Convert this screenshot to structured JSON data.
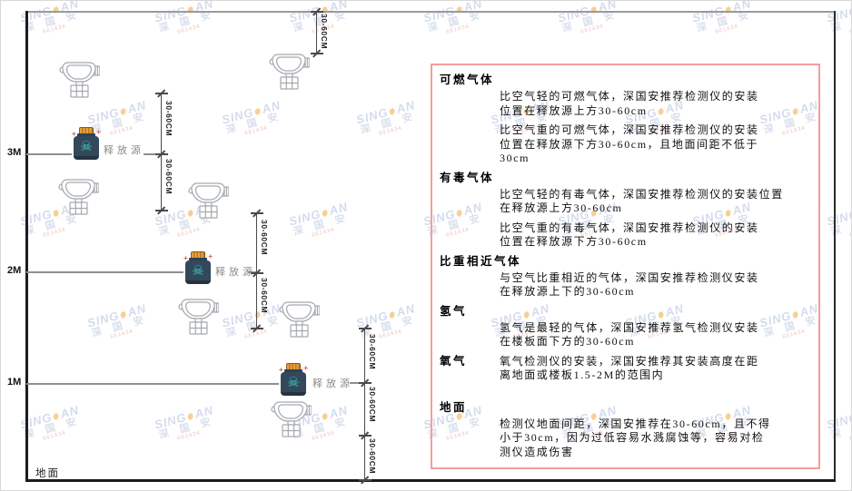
{
  "diagram": {
    "ground_label": "地面",
    "height_labels": [
      "3M",
      "2M",
      "1M"
    ],
    "release_source_label": "释放源",
    "dim_label": "30-60CM"
  },
  "panel": {
    "border_color": "#f49e9e",
    "sections": [
      {
        "heading": "可燃气体",
        "paras": [
          [
            "比空气轻的可燃气体，深国安推荐检测仪的安装",
            "位置在释放源上方30-60cm"
          ],
          [
            "比空气重的可燃气体，深国安推荐检测仪的安装",
            "位置在释放源下方30-60cm，且地面间距不低于",
            "30cm"
          ]
        ]
      },
      {
        "heading": "有毒气体",
        "paras": [
          [
            "比空气轻的有毒气体，深国安推荐检测仪的安装位置",
            "在释放源上方30-60cm"
          ],
          [
            "比空气重的有毒气体，深国安推荐检测仪的安装",
            "位置在释放源下方30-60cm"
          ]
        ]
      },
      {
        "heading": "比重相近气体",
        "paras": [
          [
            "与空气比重相近的气体，深国安推荐检测仪安装",
            "在释放源上下的30-60cm"
          ]
        ]
      },
      {
        "heading": "氢气",
        "paras": [
          [
            "氢气是最轻的气体，深国安推荐氢气检测仪安装",
            "在楼板面下方的30-60cm"
          ]
        ]
      },
      {
        "heading": "氧气",
        "inline": true,
        "paras": [
          [
            "氧气检测仪的安装，深国安推荐其安装高度在距",
            "离地面或楼板1.5-2M的范围内"
          ]
        ]
      },
      {
        "heading": "地面",
        "gap": true,
        "paras": [
          [
            "检测仪地面间距，深国安推荐在30-60cm，且不得",
            "小于30cm，因为过低容易水溅腐蚀等，容易对检",
            "测仪造成伤害"
          ]
        ]
      }
    ]
  },
  "watermark": {
    "brand_left": "SING",
    "brand_right": "AN",
    "cn": "深 国 安",
    "red_line": "661434"
  },
  "icons": {
    "skull": "☠",
    "sparkle": "+"
  }
}
